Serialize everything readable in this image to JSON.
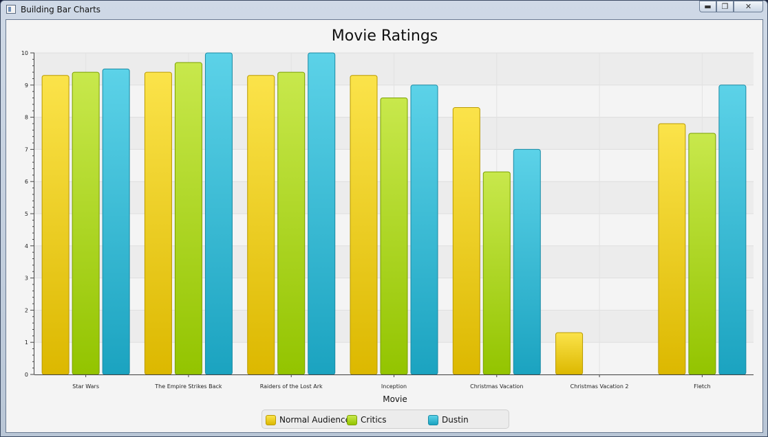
{
  "window": {
    "title": "Building Bar Charts"
  },
  "chart_data": {
    "type": "bar",
    "title": "Movie Ratings",
    "xlabel": "Movie",
    "ylabel": "",
    "ylim": [
      0,
      10
    ],
    "yticks": [
      0,
      1,
      2,
      3,
      4,
      5,
      6,
      7,
      8,
      9,
      10
    ],
    "categories": [
      "Star Wars",
      "The Empire Strikes Back",
      "Raiders of the Lost Ark",
      "Inception",
      "Christmas Vacation",
      "Christmas Vacation 2",
      "Fletch"
    ],
    "series": [
      {
        "name": "Normal Audience",
        "values": [
          9.3,
          9.4,
          9.3,
          9.3,
          8.3,
          1.3,
          7.8
        ],
        "color": "#e8c020"
      },
      {
        "name": "Critics",
        "values": [
          9.4,
          9.7,
          9.4,
          8.6,
          6.3,
          null,
          7.5
        ],
        "color": "#a5d020"
      },
      {
        "name": "Dustin",
        "values": [
          9.5,
          10,
          10,
          9,
          7,
          null,
          9
        ],
        "color": "#3ab8d6"
      }
    ],
    "grid": true,
    "legend_position": "bottom"
  }
}
